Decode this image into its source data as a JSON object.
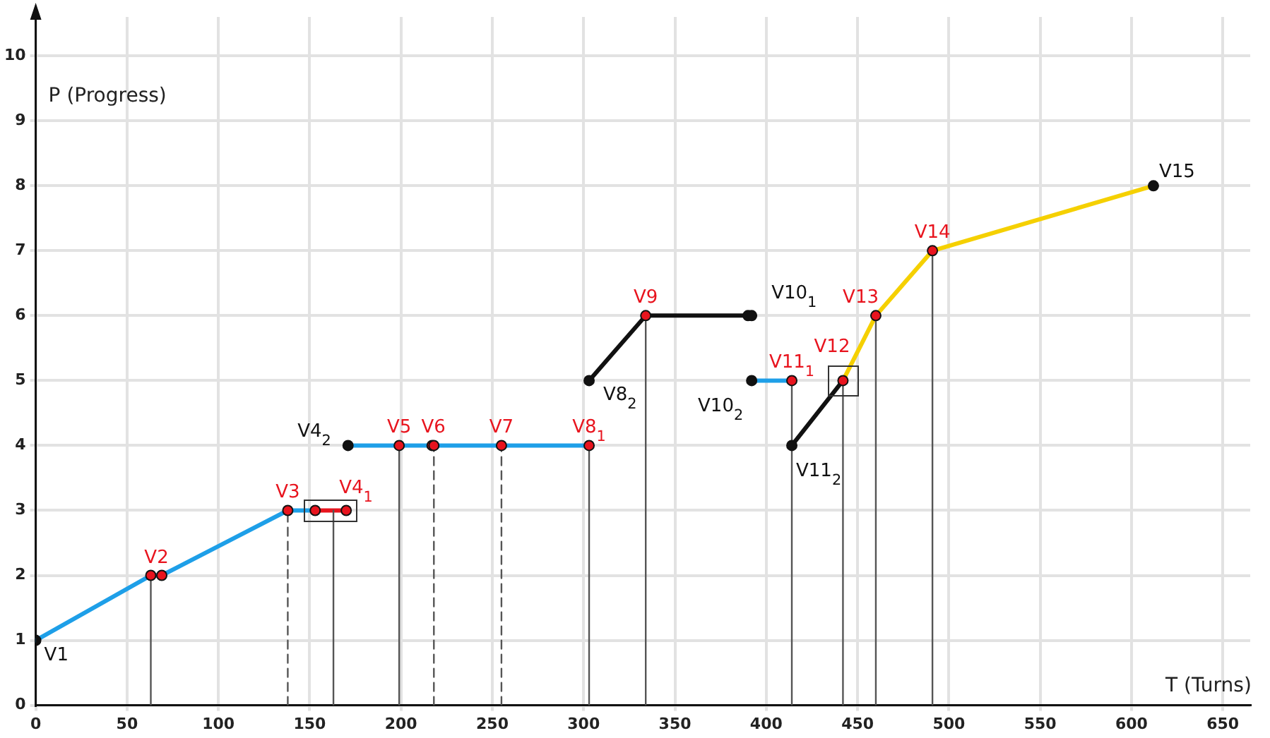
{
  "chart_data": {
    "type": "line",
    "xlabel": "T (Turns)",
    "ylabel": "P (Progress)",
    "xlim": [
      0,
      665
    ],
    "ylim": [
      0,
      10.6
    ],
    "xticks": [
      0,
      50,
      100,
      150,
      200,
      250,
      300,
      350,
      400,
      450,
      500,
      550,
      600,
      650
    ],
    "yticks": [
      0,
      1,
      2,
      3,
      4,
      5,
      6,
      7,
      8,
      9,
      10
    ],
    "grid": true,
    "legend": false,
    "series": [
      {
        "type": "line",
        "color": "#555555",
        "line_style": "solid",
        "x": [
          63,
          63,
          null,
          163,
          163,
          null,
          199,
          199,
          null,
          303,
          303,
          null,
          334,
          334,
          null,
          414,
          414,
          null,
          442,
          442,
          null,
          460,
          460,
          null,
          491,
          491
        ],
        "values": [
          0,
          2,
          null,
          0,
          3,
          null,
          0,
          4,
          null,
          0,
          4,
          null,
          0,
          6,
          null,
          0,
          5,
          null,
          0,
          5,
          null,
          0,
          6,
          null,
          0,
          7
        ]
      },
      {
        "type": "line",
        "color": "#555555",
        "line_style": "dashed",
        "x": [
          138,
          138,
          null,
          218,
          218,
          null,
          255,
          255
        ],
        "values": [
          0,
          3,
          null,
          0,
          4,
          null,
          0,
          4
        ]
      },
      {
        "type": "line",
        "color": "#1e9fe8",
        "line_style": "solid",
        "x": [
          0,
          63,
          69,
          138,
          153,
          null,
          171,
          303,
          null,
          392,
          414
        ],
        "values": [
          1,
          2,
          2,
          3,
          3,
          null,
          4,
          4,
          null,
          5,
          5
        ]
      },
      {
        "type": "line",
        "color": "#e8141e",
        "line_style": "solid",
        "x": [
          63,
          69,
          null,
          153,
          170
        ],
        "values": [
          2,
          2,
          null,
          3,
          3
        ]
      },
      {
        "type": "line",
        "color": "#111111",
        "line_style": "solid",
        "x": [
          303,
          334,
          392,
          null,
          414,
          442
        ],
        "values": [
          5,
          6,
          6,
          null,
          4,
          5
        ]
      },
      {
        "type": "line",
        "color": "#f5d000",
        "line_style": "solid",
        "x": [
          442,
          460,
          491,
          612
        ],
        "values": [
          5,
          6,
          7,
          8
        ]
      },
      {
        "type": "scatter",
        "color": "#e8141e",
        "marker": "circle",
        "x": [
          63,
          69,
          138,
          153,
          170,
          199,
          217,
          218,
          255,
          303,
          334,
          414,
          442,
          460,
          491
        ],
        "values": [
          2,
          2,
          3,
          3,
          3,
          4,
          4,
          4,
          4,
          4,
          6,
          5,
          5,
          6,
          7
        ],
        "value_labels": [
          "V2",
          null,
          "V3",
          "V4$_{1}$",
          null,
          "V5",
          "V6",
          null,
          "V7",
          "V8$_{1}$",
          "V9",
          "V11$_{1}$",
          "V12",
          "V13",
          "V14"
        ]
      },
      {
        "type": "scatter",
        "color": "#111111",
        "marker": "circle",
        "x": [
          0,
          171,
          303,
          390,
          392,
          392,
          414,
          612
        ],
        "values": [
          1,
          4,
          5,
          6,
          6,
          5,
          4,
          8
        ],
        "value_labels": [
          "V1",
          "V4$_{2}$",
          "V8$_{2}$",
          null,
          "V10$_{1}$",
          "V10$_{2}$",
          "V11$_{2}$",
          "V15"
        ]
      }
    ]
  }
}
